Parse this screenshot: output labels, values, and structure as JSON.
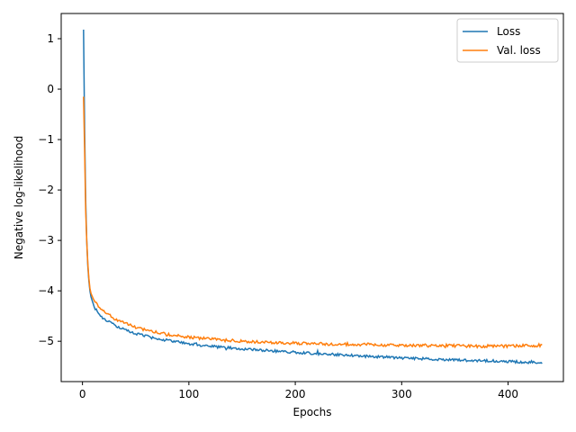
{
  "chart_data": {
    "type": "line",
    "xlabel": "Epochs",
    "ylabel": "Negative log-likelihood",
    "xlim": [
      -20,
      452
    ],
    "ylim": [
      -5.8,
      1.5
    ],
    "xticks": [
      0,
      100,
      200,
      300,
      400
    ],
    "yticks": [
      1,
      0,
      -1,
      -2,
      -3,
      -4,
      -5
    ],
    "xtick_labels": [
      "0",
      "100",
      "200",
      "300",
      "400"
    ],
    "ytick_labels": [
      "1",
      "0",
      "−1",
      "−2",
      "−3",
      "−4",
      "−5"
    ],
    "legend_position": "upper right",
    "grid": false,
    "n_epochs": 432,
    "series": [
      {
        "name": "Loss",
        "color": "#1f77b4",
        "keypoints": [
          [
            1,
            1.18
          ],
          [
            2,
            -0.8
          ],
          [
            3,
            -2.2
          ],
          [
            4,
            -3.0
          ],
          [
            5,
            -3.5
          ],
          [
            6,
            -3.8
          ],
          [
            7,
            -4.0
          ],
          [
            8,
            -4.12
          ],
          [
            10,
            -4.25
          ],
          [
            12,
            -4.35
          ],
          [
            15,
            -4.45
          ],
          [
            20,
            -4.55
          ],
          [
            25,
            -4.62
          ],
          [
            30,
            -4.68
          ],
          [
            40,
            -4.78
          ],
          [
            50,
            -4.85
          ],
          [
            60,
            -4.9
          ],
          [
            70,
            -4.95
          ],
          [
            80,
            -4.98
          ],
          [
            100,
            -5.05
          ],
          [
            120,
            -5.1
          ],
          [
            150,
            -5.15
          ],
          [
            200,
            -5.22
          ],
          [
            250,
            -5.28
          ],
          [
            300,
            -5.33
          ],
          [
            350,
            -5.37
          ],
          [
            400,
            -5.4
          ],
          [
            432,
            -5.43
          ]
        ],
        "noise": 0.025
      },
      {
        "name": "Val. loss",
        "color": "#ff7f0e",
        "keypoints": [
          [
            1,
            -0.15
          ],
          [
            2,
            -1.2
          ],
          [
            3,
            -2.4
          ],
          [
            4,
            -3.0
          ],
          [
            5,
            -3.45
          ],
          [
            6,
            -3.75
          ],
          [
            7,
            -3.95
          ],
          [
            8,
            -4.05
          ],
          [
            10,
            -4.15
          ],
          [
            12,
            -4.22
          ],
          [
            15,
            -4.3
          ],
          [
            20,
            -4.4
          ],
          [
            25,
            -4.48
          ],
          [
            30,
            -4.55
          ],
          [
            40,
            -4.65
          ],
          [
            50,
            -4.72
          ],
          [
            60,
            -4.78
          ],
          [
            70,
            -4.83
          ],
          [
            80,
            -4.87
          ],
          [
            100,
            -4.92
          ],
          [
            120,
            -4.96
          ],
          [
            150,
            -5.0
          ],
          [
            200,
            -5.04
          ],
          [
            250,
            -5.06
          ],
          [
            300,
            -5.08
          ],
          [
            350,
            -5.09
          ],
          [
            400,
            -5.1
          ],
          [
            432,
            -5.08
          ]
        ],
        "noise": 0.03
      }
    ]
  }
}
